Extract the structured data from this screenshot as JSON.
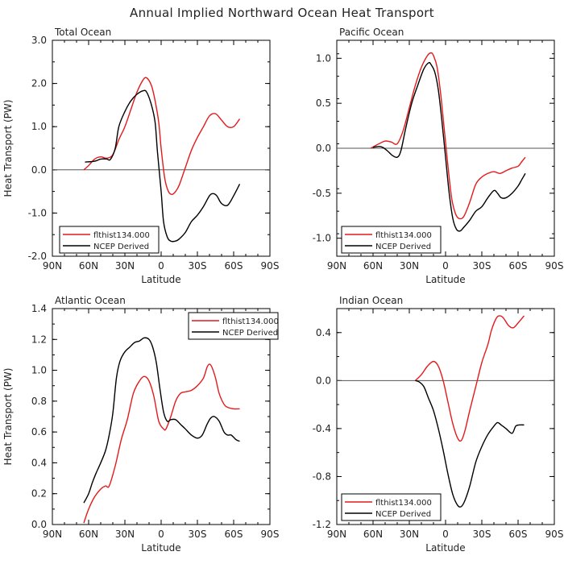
{
  "title": "Annual Implied Northward Ocean Heat Transport",
  "chart_data": [
    {
      "type": "line",
      "title": "Total Ocean",
      "xlabel": "Latitude",
      "ylabel": "Heat Transport (PW)",
      "xlim": [
        -90,
        90
      ],
      "ylim": [
        -2.0,
        3.0
      ],
      "xticks": [
        "90N",
        "60N",
        "30N",
        "0",
        "30S",
        "60S",
        "90S"
      ],
      "yticks": [
        "3.0",
        "2.0",
        "1.0",
        "0.0",
        "-1.0",
        "-2.0"
      ],
      "zero_line": true,
      "legend_position": "bottom-left",
      "series": [
        {
          "name": "flthist134.000",
          "color": "#e31a1c",
          "x": [
            -64,
            -60,
            -55,
            -50,
            -45,
            -40,
            -35,
            -30,
            -25,
            -20,
            -15,
            -12,
            -8,
            -5,
            -2,
            0,
            3,
            6,
            9,
            12,
            15,
            20,
            25,
            30,
            35,
            40,
            45,
            50,
            55,
            60,
            65
          ],
          "y": [
            0.0,
            0.1,
            0.25,
            0.3,
            0.27,
            0.35,
            0.7,
            1.0,
            1.4,
            1.8,
            2.08,
            2.13,
            1.95,
            1.6,
            1.1,
            0.5,
            -0.2,
            -0.5,
            -0.57,
            -0.5,
            -0.35,
            0.05,
            0.45,
            0.75,
            1.0,
            1.25,
            1.3,
            1.15,
            1.0,
            1.0,
            1.18
          ]
        },
        {
          "name": "NCEP Derived",
          "color": "#000000",
          "x": [
            -63,
            -55,
            -50,
            -45,
            -42,
            -38,
            -35,
            -30,
            -25,
            -20,
            -15,
            -12,
            -8,
            -5,
            -3,
            0,
            2,
            5,
            8,
            12,
            15,
            20,
            25,
            30,
            35,
            40,
            43,
            46,
            50,
            55,
            60,
            65
          ],
          "y": [
            0.18,
            0.2,
            0.25,
            0.25,
            0.24,
            0.5,
            1.0,
            1.35,
            1.6,
            1.75,
            1.83,
            1.8,
            1.5,
            1.1,
            0.4,
            -0.5,
            -1.2,
            -1.55,
            -1.65,
            -1.65,
            -1.6,
            -1.45,
            -1.2,
            -1.05,
            -0.85,
            -0.6,
            -0.55,
            -0.6,
            -0.78,
            -0.82,
            -0.6,
            -0.33
          ]
        }
      ]
    },
    {
      "type": "line",
      "title": "Pacific Ocean",
      "xlabel": "Latitude",
      "ylabel": "",
      "xlim": [
        -90,
        90
      ],
      "ylim": [
        -1.2,
        1.2
      ],
      "xticks": [
        "90N",
        "60N",
        "30N",
        "0",
        "30S",
        "60S",
        "90S"
      ],
      "yticks": [
        "1.0",
        "0.5",
        "0.0",
        "-0.5",
        "-1.0"
      ],
      "zero_line": true,
      "legend_position": "bottom-left",
      "series": [
        {
          "name": "flthist134.000",
          "color": "#e31a1c",
          "x": [
            -62,
            -55,
            -50,
            -45,
            -40,
            -35,
            -30,
            -25,
            -20,
            -15,
            -12,
            -10,
            -7,
            -4,
            -1,
            2,
            5,
            8,
            11,
            15,
            20,
            25,
            30,
            35,
            40,
            45,
            50,
            55,
            60,
            63,
            66
          ],
          "y": [
            0.0,
            0.05,
            0.08,
            0.07,
            0.05,
            0.2,
            0.45,
            0.7,
            0.9,
            1.03,
            1.06,
            1.03,
            0.9,
            0.6,
            0.2,
            -0.2,
            -0.55,
            -0.72,
            -0.78,
            -0.76,
            -0.6,
            -0.4,
            -0.32,
            -0.28,
            -0.26,
            -0.28,
            -0.25,
            -0.22,
            -0.2,
            -0.15,
            -0.1
          ]
        },
        {
          "name": "NCEP Derived",
          "color": "#000000",
          "x": [
            -60,
            -55,
            -52,
            -48,
            -44,
            -40,
            -37,
            -33,
            -28,
            -23,
            -18,
            -14,
            -12,
            -9,
            -6,
            -3,
            0,
            3,
            6,
            9,
            12,
            15,
            20,
            25,
            30,
            35,
            40,
            43,
            46,
            50,
            55,
            60,
            63,
            66
          ],
          "y": [
            0.01,
            0.02,
            0.01,
            -0.03,
            -0.08,
            -0.1,
            -0.03,
            0.22,
            0.5,
            0.7,
            0.88,
            0.95,
            0.93,
            0.85,
            0.65,
            0.3,
            -0.1,
            -0.5,
            -0.78,
            -0.9,
            -0.92,
            -0.88,
            -0.8,
            -0.7,
            -0.65,
            -0.55,
            -0.47,
            -0.5,
            -0.55,
            -0.55,
            -0.5,
            -0.42,
            -0.35,
            -0.28
          ]
        }
      ]
    },
    {
      "type": "line",
      "title": "Atlantic Ocean",
      "xlabel": "Latitude",
      "ylabel": "Heat Transport (PW)",
      "xlim": [
        -90,
        90
      ],
      "ylim": [
        0.0,
        1.4
      ],
      "xticks": [
        "90N",
        "60N",
        "30N",
        "0",
        "30S",
        "60S",
        "90S"
      ],
      "yticks": [
        "1.4",
        "1.2",
        "1.0",
        "0.8",
        "0.6",
        "0.4",
        "0.2",
        "0.0"
      ],
      "zero_line": false,
      "legend_position": "top-right",
      "series": [
        {
          "name": "flthist134.000",
          "color": "#e31a1c",
          "x": [
            -64,
            -60,
            -55,
            -50,
            -46,
            -43,
            -38,
            -33,
            -28,
            -23,
            -18,
            -14,
            -10,
            -6,
            -2,
            2,
            4,
            8,
            12,
            16,
            20,
            25,
            30,
            35,
            38,
            40,
            42,
            45,
            48,
            52,
            55,
            60,
            65
          ],
          "y": [
            0.01,
            0.1,
            0.18,
            0.23,
            0.25,
            0.25,
            0.38,
            0.55,
            0.68,
            0.85,
            0.93,
            0.96,
            0.93,
            0.83,
            0.67,
            0.62,
            0.62,
            0.7,
            0.8,
            0.85,
            0.86,
            0.87,
            0.9,
            0.95,
            1.02,
            1.04,
            1.02,
            0.95,
            0.85,
            0.78,
            0.76,
            0.75,
            0.75
          ]
        },
        {
          "name": "NCEP Derived",
          "color": "#000000",
          "x": [
            -64,
            -60,
            -57,
            -54,
            -50,
            -46,
            -43,
            -40,
            -37,
            -34,
            -30,
            -26,
            -22,
            -18,
            -14,
            -10,
            -7,
            -4,
            -1,
            2,
            5,
            8,
            12,
            16,
            20,
            25,
            30,
            34,
            38,
            41,
            44,
            48,
            52,
            55,
            58,
            62,
            65
          ],
          "y": [
            0.14,
            0.2,
            0.27,
            0.33,
            0.4,
            0.48,
            0.58,
            0.72,
            0.95,
            1.06,
            1.12,
            1.15,
            1.18,
            1.19,
            1.21,
            1.2,
            1.15,
            1.05,
            0.88,
            0.73,
            0.67,
            0.68,
            0.68,
            0.65,
            0.62,
            0.58,
            0.56,
            0.58,
            0.65,
            0.69,
            0.7,
            0.67,
            0.6,
            0.58,
            0.58,
            0.55,
            0.54
          ]
        }
      ]
    },
    {
      "type": "line",
      "title": "Indian Ocean",
      "xlabel": "Latitude",
      "ylabel": "",
      "xlim": [
        -90,
        90
      ],
      "ylim": [
        -1.2,
        0.6
      ],
      "xticks": [
        "90N",
        "60N",
        "30N",
        "0",
        "30S",
        "60S",
        "90S"
      ],
      "yticks": [
        "0.4",
        "0.0",
        "-0.4",
        "-0.8",
        "-1.2"
      ],
      "zero_line": true,
      "legend_position": "bottom-left",
      "series": [
        {
          "name": "flthist134.000",
          "color": "#e31a1c",
          "x": [
            -25,
            -20,
            -15,
            -10,
            -6,
            -2,
            2,
            6,
            10,
            13,
            16,
            20,
            25,
            30,
            35,
            38,
            42,
            45,
            48,
            52,
            56,
            60,
            65
          ],
          "y": [
            0.0,
            0.05,
            0.12,
            0.16,
            0.12,
            0.0,
            -0.18,
            -0.36,
            -0.48,
            -0.5,
            -0.42,
            -0.25,
            -0.05,
            0.15,
            0.3,
            0.42,
            0.52,
            0.54,
            0.52,
            0.46,
            0.44,
            0.48,
            0.54
          ]
        },
        {
          "name": "NCEP Derived",
          "color": "#000000",
          "x": [
            -25,
            -22,
            -18,
            -14,
            -10,
            -6,
            -2,
            2,
            6,
            10,
            13,
            16,
            20,
            25,
            30,
            35,
            40,
            43,
            46,
            50,
            55,
            58,
            61,
            65
          ],
          "y": [
            0.0,
            -0.01,
            -0.05,
            -0.15,
            -0.25,
            -0.4,
            -0.58,
            -0.78,
            -0.95,
            -1.04,
            -1.05,
            -1.0,
            -0.88,
            -0.68,
            -0.55,
            -0.45,
            -0.38,
            -0.35,
            -0.37,
            -0.4,
            -0.44,
            -0.38,
            -0.37,
            -0.37
          ]
        }
      ]
    }
  ]
}
